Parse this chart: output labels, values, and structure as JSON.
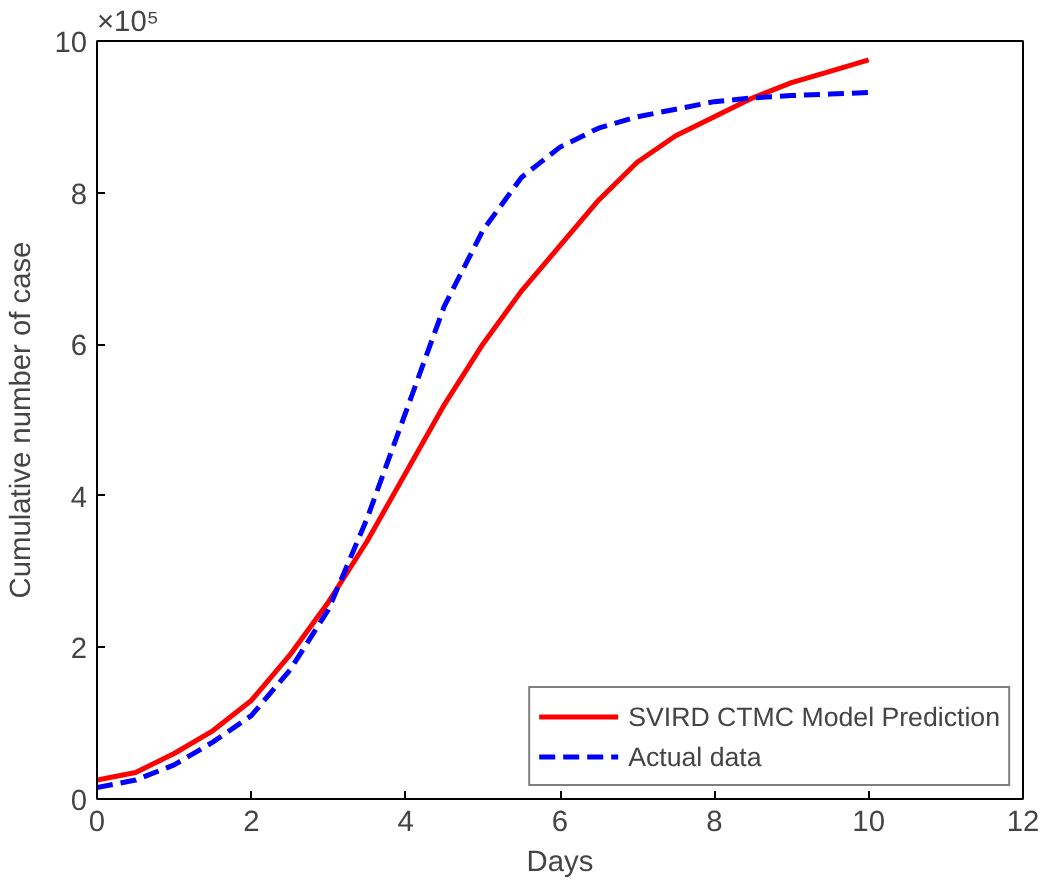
{
  "chart_data": {
    "type": "line",
    "xlabel": "Days",
    "ylabel": "Cumulative number of case",
    "annotations": [
      "×10⁵"
    ],
    "xlim": [
      0,
      12
    ],
    "xticks": [
      0,
      2,
      4,
      6,
      8,
      10,
      12
    ],
    "ylim": [
      0,
      10
    ],
    "yticks": [
      0,
      2,
      4,
      6,
      8,
      10
    ],
    "grid": false,
    "legend": "bottom right",
    "marker": "none",
    "series": [
      {
        "name": "SVIRD CTMC Model Prediction",
        "color": "#ff0000",
        "line_style": "solid",
        "x": [
          0,
          0.5,
          1,
          1.5,
          2,
          2.5,
          3,
          3.5,
          4,
          4.5,
          5,
          5.5,
          6,
          6.5,
          7,
          7.5,
          8,
          8.5,
          9,
          9.5,
          10
        ],
        "values": [
          0.25,
          0.35,
          0.6,
          0.9,
          1.3,
          1.9,
          2.6,
          3.4,
          4.3,
          5.2,
          6.0,
          6.7,
          7.3,
          7.9,
          8.4,
          8.75,
          9.0,
          9.25,
          9.45,
          9.6,
          9.75
        ]
      },
      {
        "name": "Actual data",
        "color": "#0000ff",
        "line_style": "dashed",
        "x": [
          0,
          0.5,
          1,
          1.5,
          2,
          2.5,
          3,
          3.5,
          4,
          4.5,
          5,
          5.5,
          6,
          6.5,
          7,
          7.5,
          8,
          8.5,
          9,
          9.5,
          10
        ],
        "values": [
          0.15,
          0.25,
          0.45,
          0.75,
          1.1,
          1.7,
          2.5,
          3.7,
          5.1,
          6.5,
          7.5,
          8.2,
          8.6,
          8.85,
          9.0,
          9.1,
          9.2,
          9.25,
          9.28,
          9.3,
          9.32
        ]
      }
    ]
  }
}
